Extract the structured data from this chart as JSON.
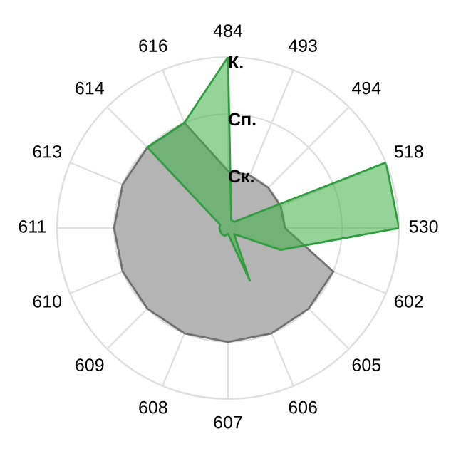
{
  "chart_data": {
    "type": "radar",
    "categories": [
      "484",
      "493",
      "494",
      "518",
      "530",
      "602",
      "605",
      "606",
      "607",
      "608",
      "609",
      "610",
      "611",
      "613",
      "614",
      "616"
    ],
    "ylim": [
      0,
      3
    ],
    "yticks": [
      {
        "value": 1,
        "label": "Ск."
      },
      {
        "value": 2,
        "label": "Сп."
      },
      {
        "value": 3,
        "label": "К."
      }
    ],
    "grid": true,
    "series": [
      {
        "color": "#b4b4b4",
        "values": [
          1,
          1,
          1,
          1,
          1,
          2,
          2,
          2,
          2,
          2,
          2,
          2,
          2,
          2,
          2,
          2
        ]
      },
      {
        "color": "#3cb043",
        "values": [
          3,
          0.15,
          0.15,
          3,
          3,
          1,
          0.15,
          1,
          0.1,
          0.15,
          0.15,
          0.15,
          0.15,
          0.15,
          2,
          2
        ]
      }
    ]
  }
}
